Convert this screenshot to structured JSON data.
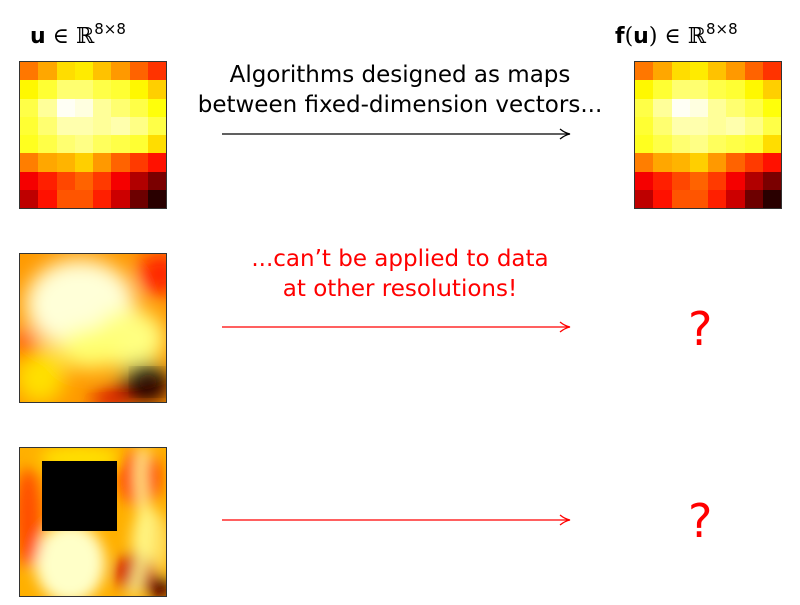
{
  "labels": {
    "input_bold": "u",
    "input_rest": " ∈ ℝ",
    "input_sup": "8×8",
    "output_bold": "f",
    "output_paren_open": "(",
    "output_inner_bold": "u",
    "output_rest": ") ∈ ℝ",
    "output_sup": "8×8"
  },
  "captions": {
    "top_line1": "Algorithms designed as maps",
    "top_line2": "between fixed-dimension vectors...",
    "middle_line1": "...can’t be applied to data",
    "middle_line2": "at other resolutions!"
  },
  "question_marks": [
    "?",
    "?"
  ],
  "colors": {
    "text": "#000000",
    "highlight": "#ff0000",
    "arrow_top": "#000000",
    "arrow_red": "#ff0000"
  },
  "heatmap": {
    "colormap": "hot",
    "values": [
      [
        0.55,
        0.62,
        0.7,
        0.72,
        0.66,
        0.6,
        0.52,
        0.45
      ],
      [
        0.74,
        0.8,
        0.86,
        0.86,
        0.82,
        0.8,
        0.74,
        0.68
      ],
      [
        0.82,
        0.9,
        0.99,
        0.97,
        0.9,
        0.86,
        0.82,
        0.76
      ],
      [
        0.8,
        0.86,
        0.92,
        0.92,
        0.9,
        0.92,
        0.88,
        0.82
      ],
      [
        0.78,
        0.82,
        0.86,
        0.88,
        0.84,
        0.82,
        0.8,
        0.7
      ],
      [
        0.56,
        0.62,
        0.64,
        0.68,
        0.6,
        0.52,
        0.46,
        0.4
      ],
      [
        0.36,
        0.42,
        0.48,
        0.52,
        0.46,
        0.36,
        0.26,
        0.18
      ],
      [
        0.28,
        0.4,
        0.5,
        0.5,
        0.42,
        0.3,
        0.16,
        0.06
      ]
    ]
  }
}
